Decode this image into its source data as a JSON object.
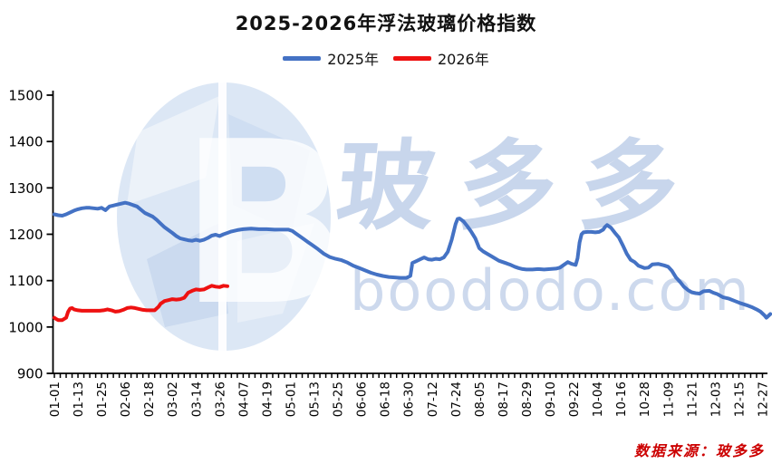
{
  "page": {
    "title": "2025-2026年浮法玻璃价格指数"
  },
  "legend": {
    "items": [
      {
        "label": "2025年",
        "color": "#4472c4"
      },
      {
        "label": "2026年",
        "color": "#ee1111"
      }
    ]
  },
  "watermark": {
    "logo_letter": "B",
    "brand": "玻多多",
    "domain": "boododo.com"
  },
  "source_note": "数据来源：玻多多",
  "chart_data": {
    "type": "line",
    "title": "2025-2026年浮法玻璃价格指数",
    "xlabel": "",
    "ylabel": "",
    "ylim": [
      900,
      1500
    ],
    "ytick_step": 100,
    "grid": false,
    "legend_position": "top",
    "x_unit": "day offset from 01-01",
    "x_tick_interval_days": 12,
    "x_minor_tick_interval_days": 3,
    "x_tick_labels": [
      "01-01",
      "01-13",
      "01-25",
      "02-06",
      "02-18",
      "03-02",
      "03-14",
      "03-26",
      "04-07",
      "04-19",
      "05-01",
      "05-13",
      "05-25",
      "06-06",
      "06-18",
      "06-30",
      "07-12",
      "07-24",
      "08-05",
      "08-17",
      "08-29",
      "09-10",
      "09-22",
      "10-04",
      "10-16",
      "10-28",
      "11-09",
      "11-21",
      "12-03",
      "12-15",
      "12-27"
    ],
    "series": [
      {
        "name": "2025年",
        "color": "#4472c4",
        "points": [
          [
            0,
            1243
          ],
          [
            2,
            1241
          ],
          [
            4,
            1240
          ],
          [
            6,
            1243
          ],
          [
            8,
            1247
          ],
          [
            10,
            1251
          ],
          [
            12,
            1254
          ],
          [
            14,
            1256
          ],
          [
            16,
            1257
          ],
          [
            18,
            1257
          ],
          [
            20,
            1256
          ],
          [
            22,
            1255
          ],
          [
            24,
            1257
          ],
          [
            26,
            1252
          ],
          [
            28,
            1260
          ],
          [
            30,
            1262
          ],
          [
            32,
            1264
          ],
          [
            34,
            1266
          ],
          [
            36,
            1268
          ],
          [
            38,
            1266
          ],
          [
            40,
            1263
          ],
          [
            42,
            1260
          ],
          [
            44,
            1253
          ],
          [
            46,
            1246
          ],
          [
            48,
            1242
          ],
          [
            50,
            1238
          ],
          [
            52,
            1231
          ],
          [
            54,
            1223
          ],
          [
            56,
            1215
          ],
          [
            58,
            1209
          ],
          [
            60,
            1203
          ],
          [
            62,
            1196
          ],
          [
            64,
            1191
          ],
          [
            66,
            1189
          ],
          [
            68,
            1187
          ],
          [
            70,
            1186
          ],
          [
            72,
            1188
          ],
          [
            74,
            1186
          ],
          [
            76,
            1188
          ],
          [
            78,
            1192
          ],
          [
            80,
            1197
          ],
          [
            82,
            1199
          ],
          [
            84,
            1196
          ],
          [
            86,
            1200
          ],
          [
            88,
            1203
          ],
          [
            90,
            1206
          ],
          [
            93,
            1209
          ],
          [
            96,
            1211
          ],
          [
            100,
            1212
          ],
          [
            104,
            1211
          ],
          [
            108,
            1211
          ],
          [
            112,
            1210
          ],
          [
            116,
            1210
          ],
          [
            119,
            1210
          ],
          [
            121,
            1207
          ],
          [
            123,
            1201
          ],
          [
            125,
            1195
          ],
          [
            127,
            1189
          ],
          [
            129,
            1183
          ],
          [
            131,
            1177
          ],
          [
            134,
            1168
          ],
          [
            137,
            1158
          ],
          [
            140,
            1151
          ],
          [
            143,
            1147
          ],
          [
            146,
            1144
          ],
          [
            149,
            1139
          ],
          [
            152,
            1132
          ],
          [
            155,
            1127
          ],
          [
            158,
            1122
          ],
          [
            161,
            1117
          ],
          [
            164,
            1113
          ],
          [
            167,
            1110
          ],
          [
            170,
            1108
          ],
          [
            173,
            1107
          ],
          [
            176,
            1106
          ],
          [
            179,
            1106
          ],
          [
            181,
            1110
          ],
          [
            182,
            1138
          ],
          [
            184,
            1142
          ],
          [
            186,
            1146
          ],
          [
            188,
            1150
          ],
          [
            190,
            1146
          ],
          [
            192,
            1145
          ],
          [
            194,
            1147
          ],
          [
            196,
            1146
          ],
          [
            198,
            1150
          ],
          [
            200,
            1162
          ],
          [
            202,
            1188
          ],
          [
            204,
            1222
          ],
          [
            205,
            1233
          ],
          [
            206,
            1234
          ],
          [
            208,
            1228
          ],
          [
            210,
            1217
          ],
          [
            212,
            1205
          ],
          [
            214,
            1191
          ],
          [
            216,
            1170
          ],
          [
            218,
            1163
          ],
          [
            220,
            1158
          ],
          [
            222,
            1153
          ],
          [
            224,
            1148
          ],
          [
            226,
            1143
          ],
          [
            228,
            1140
          ],
          [
            230,
            1137
          ],
          [
            232,
            1134
          ],
          [
            234,
            1130
          ],
          [
            236,
            1127
          ],
          [
            238,
            1125
          ],
          [
            240,
            1124
          ],
          [
            243,
            1124
          ],
          [
            246,
            1125
          ],
          [
            249,
            1124
          ],
          [
            252,
            1125
          ],
          [
            255,
            1126
          ],
          [
            257,
            1128
          ],
          [
            259,
            1134
          ],
          [
            261,
            1140
          ],
          [
            263,
            1136
          ],
          [
            265,
            1134
          ],
          [
            266,
            1148
          ],
          [
            267,
            1182
          ],
          [
            268,
            1200
          ],
          [
            269,
            1204
          ],
          [
            271,
            1205
          ],
          [
            273,
            1205
          ],
          [
            275,
            1204
          ],
          [
            277,
            1205
          ],
          [
            279,
            1210
          ],
          [
            280,
            1216
          ],
          [
            281,
            1220
          ],
          [
            283,
            1214
          ],
          [
            285,
            1203
          ],
          [
            287,
            1193
          ],
          [
            289,
            1176
          ],
          [
            291,
            1158
          ],
          [
            293,
            1145
          ],
          [
            295,
            1140
          ],
          [
            297,
            1132
          ],
          [
            300,
            1127
          ],
          [
            302,
            1128
          ],
          [
            304,
            1135
          ],
          [
            307,
            1136
          ],
          [
            310,
            1133
          ],
          [
            312,
            1130
          ],
          [
            314,
            1121
          ],
          [
            316,
            1107
          ],
          [
            318,
            1098
          ],
          [
            320,
            1087
          ],
          [
            322,
            1080
          ],
          [
            324,
            1075
          ],
          [
            326,
            1073
          ],
          [
            328,
            1072
          ],
          [
            330,
            1077
          ],
          [
            333,
            1078
          ],
          [
            335,
            1074
          ],
          [
            337,
            1071
          ],
          [
            340,
            1064
          ],
          [
            343,
            1061
          ],
          [
            346,
            1056
          ],
          [
            349,
            1051
          ],
          [
            352,
            1047
          ],
          [
            355,
            1042
          ],
          [
            357,
            1038
          ],
          [
            359,
            1033
          ],
          [
            361,
            1025
          ],
          [
            362,
            1020
          ],
          [
            364,
            1028
          ]
        ]
      },
      {
        "name": "2026年",
        "color": "#ee1111",
        "points": [
          [
            0,
            1020
          ],
          [
            1,
            1017
          ],
          [
            2,
            1015
          ],
          [
            4,
            1015
          ],
          [
            6,
            1020
          ],
          [
            7,
            1033
          ],
          [
            8,
            1040
          ],
          [
            9,
            1041
          ],
          [
            10,
            1038
          ],
          [
            12,
            1036
          ],
          [
            14,
            1035
          ],
          [
            17,
            1035
          ],
          [
            20,
            1035
          ],
          [
            23,
            1035
          ],
          [
            25,
            1036
          ],
          [
            27,
            1038
          ],
          [
            29,
            1036
          ],
          [
            31,
            1033
          ],
          [
            33,
            1034
          ],
          [
            35,
            1037
          ],
          [
            37,
            1041
          ],
          [
            39,
            1042
          ],
          [
            41,
            1041
          ],
          [
            43,
            1039
          ],
          [
            45,
            1037
          ],
          [
            47,
            1036
          ],
          [
            49,
            1036
          ],
          [
            51,
            1036
          ],
          [
            53,
            1044
          ],
          [
            54,
            1050
          ],
          [
            56,
            1056
          ],
          [
            58,
            1058
          ],
          [
            60,
            1060
          ],
          [
            62,
            1059
          ],
          [
            64,
            1060
          ],
          [
            66,
            1063
          ],
          [
            67,
            1068
          ],
          [
            68,
            1074
          ],
          [
            70,
            1078
          ],
          [
            72,
            1081
          ],
          [
            74,
            1080
          ],
          [
            76,
            1081
          ],
          [
            78,
            1085
          ],
          [
            80,
            1089
          ],
          [
            82,
            1087
          ],
          [
            84,
            1086
          ],
          [
            86,
            1089
          ],
          [
            88,
            1088
          ]
        ]
      }
    ]
  }
}
